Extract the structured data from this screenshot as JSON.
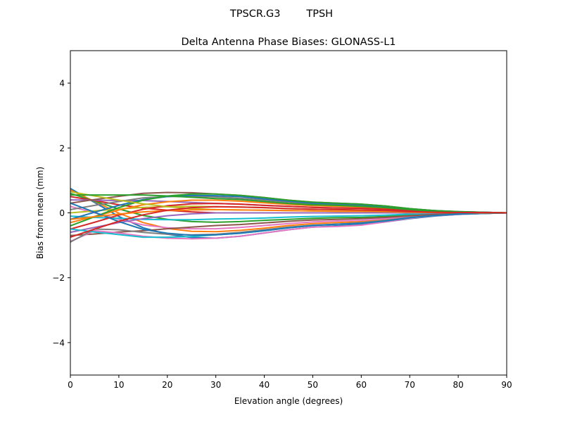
{
  "chart_data": {
    "type": "line",
    "suptitle": "TPSCR.G3        TPSH",
    "title": "Delta Antenna Phase Biases: GLONASS-L1",
    "xlabel": "Elevation angle (degrees)",
    "ylabel": "Bias from mean (mm)",
    "xlim": [
      0,
      90
    ],
    "ylim": [
      -5,
      5
    ],
    "xticks": [
      0,
      10,
      20,
      30,
      40,
      50,
      60,
      70,
      80,
      90
    ],
    "yticks": [
      -4,
      -2,
      0,
      2,
      4
    ],
    "ytick_labels": [
      "−4",
      "−2",
      "0",
      "2",
      "4"
    ],
    "grid": false,
    "colors": [
      "#1f77b4",
      "#ff7f0e",
      "#2ca02c",
      "#d62728",
      "#9467bd",
      "#8c564b",
      "#e377c2",
      "#7f7f7f",
      "#bcbd22",
      "#17becf"
    ],
    "x": [
      0,
      5,
      10,
      15,
      20,
      25,
      30,
      35,
      40,
      45,
      50,
      55,
      60,
      65,
      70,
      75,
      80,
      85,
      90
    ],
    "series": [
      {
        "values": [
          0.75,
          0.32,
          -0.11,
          -0.46,
          -0.66,
          -0.76,
          -0.78,
          -0.72,
          -0.62,
          -0.52,
          -0.44,
          -0.4,
          -0.36,
          -0.28,
          -0.18,
          -0.1,
          -0.05,
          -0.02,
          0
        ]
      },
      {
        "values": [
          0.7,
          0.35,
          -0.01,
          -0.3,
          -0.48,
          -0.57,
          -0.58,
          -0.54,
          -0.47,
          -0.39,
          -0.33,
          -0.3,
          -0.27,
          -0.21,
          -0.13,
          -0.07,
          -0.04,
          -0.02,
          0
        ]
      },
      {
        "values": [
          0.6,
          0.36,
          0.12,
          -0.08,
          -0.2,
          -0.27,
          -0.29,
          -0.27,
          -0.23,
          -0.2,
          -0.17,
          -0.15,
          -0.14,
          -0.11,
          -0.07,
          -0.04,
          -0.02,
          -0.01,
          0
        ]
      },
      {
        "values": [
          0.5,
          0.38,
          0.25,
          0.15,
          0.08,
          0.03,
          0,
          0,
          0,
          0,
          0,
          0,
          0,
          0,
          0,
          0,
          0,
          0,
          0
        ]
      },
      {
        "values": [
          0.4,
          0.39,
          0.38,
          0.38,
          0.35,
          0.32,
          0.29,
          0.27,
          0.23,
          0.2,
          0.17,
          0.15,
          0.14,
          0.11,
          0.07,
          0.04,
          0.02,
          0.01,
          0
        ]
      },
      {
        "values": [
          0.3,
          0.41,
          0.51,
          0.6,
          0.63,
          0.62,
          0.58,
          0.54,
          0.47,
          0.39,
          0.33,
          0.3,
          0.27,
          0.21,
          0.13,
          0.07,
          0.04,
          0.02,
          0
        ]
      },
      {
        "values": [
          0.2,
          0,
          -0.2,
          -0.37,
          -0.46,
          -0.49,
          -0.49,
          -0.45,
          -0.39,
          -0.33,
          -0.28,
          -0.25,
          -0.23,
          -0.18,
          -0.11,
          -0.06,
          -0.03,
          -0.02,
          0
        ]
      },
      {
        "values": [
          0.1,
          0.23,
          0.35,
          0.46,
          0.5,
          0.51,
          0.49,
          0.45,
          0.39,
          0.33,
          0.28,
          0.25,
          0.23,
          0.18,
          0.11,
          0.06,
          0.03,
          0.02,
          0
        ]
      },
      {
        "values": [
          0,
          0.06,
          0.12,
          0.17,
          0.19,
          0.2,
          0.19,
          0.18,
          0.16,
          0.13,
          0.11,
          0.1,
          0.09,
          0.07,
          0.04,
          0.02,
          0.01,
          0.01,
          0
        ]
      },
      {
        "values": [
          -0.1,
          -0.14,
          -0.17,
          -0.2,
          -0.21,
          -0.21,
          -0.19,
          -0.18,
          -0.16,
          -0.13,
          -0.11,
          -0.1,
          -0.09,
          -0.07,
          -0.04,
          -0.02,
          -0.01,
          -0.01,
          0
        ]
      },
      {
        "values": [
          -0.2,
          0.02,
          0.23,
          0.41,
          0.5,
          0.54,
          0.53,
          0.5,
          0.43,
          0.36,
          0.3,
          0.28,
          0.25,
          0.19,
          0.12,
          0.07,
          0.03,
          0.02,
          0
        ]
      },
      {
        "values": [
          -0.3,
          -0.11,
          0.09,
          0.25,
          0.34,
          0.39,
          0.39,
          0.36,
          0.31,
          0.26,
          0.22,
          0.2,
          0.18,
          0.14,
          0.09,
          0.05,
          0.02,
          0.01,
          0
        ]
      },
      {
        "values": [
          -0.4,
          -0.12,
          0.16,
          0.39,
          0.52,
          0.58,
          0.58,
          0.54,
          0.47,
          0.39,
          0.33,
          0.3,
          0.27,
          0.21,
          0.13,
          0.07,
          0.04,
          0.02,
          0
        ]
      },
      {
        "values": [
          -0.5,
          -0.29,
          -0.07,
          0.11,
          0.22,
          0.28,
          0.29,
          0.27,
          0.23,
          0.2,
          0.17,
          0.15,
          0.14,
          0.11,
          0.07,
          0.04,
          0.02,
          0.01,
          0
        ]
      },
      {
        "values": [
          -0.6,
          -0.45,
          -0.3,
          -0.18,
          -0.09,
          -0.03,
          0,
          0,
          0,
          0,
          0,
          0,
          0,
          0,
          0,
          0,
          0,
          0,
          0
        ]
      },
      {
        "values": [
          -0.7,
          -0.65,
          -0.59,
          -0.55,
          -0.49,
          -0.44,
          -0.39,
          -0.36,
          -0.31,
          -0.26,
          -0.22,
          -0.2,
          -0.18,
          -0.14,
          -0.09,
          -0.05,
          -0.02,
          -0.01,
          0
        ]
      },
      {
        "values": [
          -0.88,
          -0.55,
          -0.62,
          -0.72,
          -0.78,
          -0.8,
          -0.78,
          -0.72,
          -0.62,
          -0.52,
          -0.44,
          -0.42,
          -0.38,
          -0.28,
          -0.17,
          -0.09,
          -0.05,
          -0.02,
          0
        ]
      },
      {
        "values": [
          -0.9,
          -0.5,
          -0.52,
          -0.6,
          -0.66,
          -0.68,
          -0.66,
          -0.6,
          -0.52,
          -0.44,
          -0.38,
          -0.35,
          -0.3,
          -0.23,
          -0.14,
          -0.08,
          -0.04,
          -0.02,
          0
        ]
      },
      {
        "values": [
          0.65,
          0.52,
          0.39,
          0.28,
          0.19,
          0.13,
          0.1,
          0.09,
          0.08,
          0.07,
          0.06,
          0.05,
          0.05,
          0.04,
          0.02,
          0.01,
          0.01,
          0,
          0
        ]
      },
      {
        "values": [
          -0.5,
          -0.59,
          -0.67,
          -0.75,
          -0.75,
          -0.73,
          -0.68,
          -0.63,
          -0.55,
          -0.46,
          -0.39,
          -0.35,
          -0.32,
          -0.25,
          -0.15,
          -0.08,
          -0.04,
          -0.02,
          0
        ]
      },
      {
        "values": [
          0.3,
          0.02,
          -0.27,
          -0.51,
          -0.63,
          -0.69,
          -0.68,
          -0.63,
          -0.55,
          -0.46,
          -0.39,
          -0.35,
          -0.32,
          -0.25,
          -0.15,
          -0.08,
          -0.04,
          -0.02,
          0
        ]
      },
      {
        "values": [
          -0.2,
          -0.12,
          -0.04,
          0.03,
          0.07,
          0.09,
          0.1,
          0.09,
          0.08,
          0.07,
          0.06,
          0.05,
          0.05,
          0.04,
          0.02,
          0.01,
          0.01,
          0,
          0
        ]
      },
      {
        "values": [
          0.55,
          0.55,
          0.55,
          0.55,
          0.52,
          0.48,
          0.44,
          0.41,
          0.35,
          0.29,
          0.25,
          0.23,
          0.2,
          0.16,
          0.1,
          0.05,
          0.03,
          0.01,
          0
        ]
      },
      {
        "values": [
          -0.75,
          -0.5,
          -0.26,
          -0.06,
          0.08,
          0.16,
          0.19,
          0.18,
          0.16,
          0.13,
          0.11,
          0.1,
          0.09,
          0.07,
          0.04,
          0.02,
          0.01,
          0.01,
          0
        ]
      }
    ]
  }
}
